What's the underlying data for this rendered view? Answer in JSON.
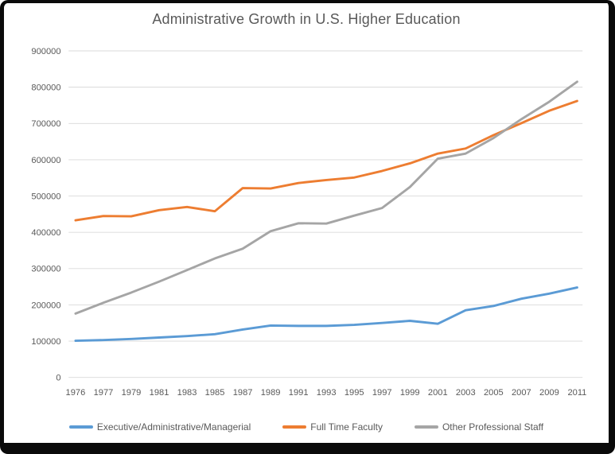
{
  "chart_data": {
    "type": "line",
    "title": "Administrative Growth in U.S. Higher Education",
    "xlabel": "",
    "ylabel": "",
    "categories": [
      "1976",
      "1977",
      "1979",
      "1981",
      "1983",
      "1985",
      "1987",
      "1989",
      "1991",
      "1993",
      "1995",
      "1997",
      "1999",
      "2001",
      "2003",
      "2005",
      "2007",
      "2009",
      "2011"
    ],
    "series": [
      {
        "name": "Executive/Administrative/Managerial",
        "color": "#5B9BD5",
        "values": [
          101000,
          103000,
          106000,
          110000,
          114000,
          119000,
          132000,
          143000,
          142000,
          142000,
          145000,
          150000,
          156000,
          148000,
          185000,
          197000,
          217000,
          231000,
          248000
        ]
      },
      {
        "name": "Full Time Faculty",
        "color": "#ED7D31",
        "values": [
          433000,
          445000,
          444000,
          461000,
          470000,
          458000,
          522000,
          521000,
          536000,
          544000,
          551000,
          569000,
          590000,
          617000,
          631000,
          668000,
          701000,
          735000,
          762000
        ]
      },
      {
        "name": "Other Professional Staff",
        "color": "#A5A5A5",
        "values": [
          176000,
          206000,
          234000,
          264000,
          296000,
          328000,
          355000,
          403000,
          425000,
          424000,
          446000,
          467000,
          525000,
          603000,
          617000,
          660000,
          712000,
          760000,
          815000
        ]
      }
    ],
    "ylim": [
      0,
      900000
    ],
    "ytick_step": 100000,
    "grid": true,
    "legend_position": "bottom"
  },
  "colors": {
    "gridline": "#D9D9D9",
    "axis_text": "#595959",
    "title_text": "#595959",
    "frame": "#0A0A0A",
    "background": "#FFFFFF"
  }
}
